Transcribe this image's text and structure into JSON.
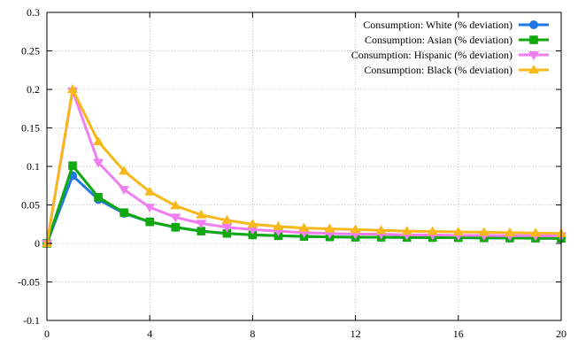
{
  "chart_data": {
    "type": "line",
    "title": "",
    "xlabel": "",
    "ylabel": "",
    "xlim": [
      0,
      20
    ],
    "ylim": [
      -0.1,
      0.3
    ],
    "x_ticks": [
      0,
      4,
      8,
      12,
      16,
      20
    ],
    "x_tick_labels": [
      "0",
      "4",
      "8",
      "12",
      "16",
      "20"
    ],
    "y_ticks": [
      -0.1,
      -0.05,
      0,
      0.05,
      0.1,
      0.15,
      0.2,
      0.25,
      0.3
    ],
    "y_tick_labels": [
      "-0.1",
      "-0.05",
      "0",
      "0.05",
      "0.1",
      "0.15",
      "0.2",
      "0.25",
      "0.3"
    ],
    "grid": true,
    "legend_position": "top-right",
    "x": [
      0,
      1,
      2,
      3,
      4,
      5,
      6,
      7,
      8,
      9,
      10,
      11,
      12,
      13,
      14,
      15,
      16,
      17,
      18,
      19,
      20
    ],
    "series": [
      {
        "name": "Consumption: White (% deviation)",
        "color": "#1f77e8",
        "marker": "circle",
        "values": [
          0.0,
          0.088,
          0.057,
          0.039,
          0.028,
          0.021,
          0.016,
          0.013,
          0.011,
          0.01,
          0.009,
          0.0085,
          0.008,
          0.008,
          0.0078,
          0.0076,
          0.0074,
          0.0072,
          0.007,
          0.0068,
          0.0066
        ]
      },
      {
        "name": "Consumption: Asian (% deviation)",
        "color": "#0fa80f",
        "marker": "square",
        "values": [
          0.0,
          0.101,
          0.06,
          0.04,
          0.028,
          0.021,
          0.016,
          0.013,
          0.011,
          0.01,
          0.009,
          0.0085,
          0.008,
          0.008,
          0.0078,
          0.0076,
          0.0074,
          0.0072,
          0.007,
          0.0068,
          0.0066
        ]
      },
      {
        "name": "Consumption: Hispanic (% deviation)",
        "color": "#f07ef0",
        "marker": "triangle-down",
        "values": [
          0.0,
          0.198,
          0.105,
          0.07,
          0.047,
          0.034,
          0.026,
          0.021,
          0.018,
          0.016,
          0.014,
          0.013,
          0.012,
          0.012,
          0.011,
          0.011,
          0.0105,
          0.0103,
          0.0101,
          0.01,
          0.0099
        ]
      },
      {
        "name": "Consumption: Black (% deviation)",
        "color": "#f7b81c",
        "marker": "triangle-up",
        "values": [
          0.0,
          0.2,
          0.132,
          0.094,
          0.067,
          0.049,
          0.037,
          0.03,
          0.025,
          0.022,
          0.02,
          0.019,
          0.018,
          0.017,
          0.016,
          0.0155,
          0.015,
          0.0145,
          0.014,
          0.0135,
          0.013
        ]
      }
    ]
  }
}
